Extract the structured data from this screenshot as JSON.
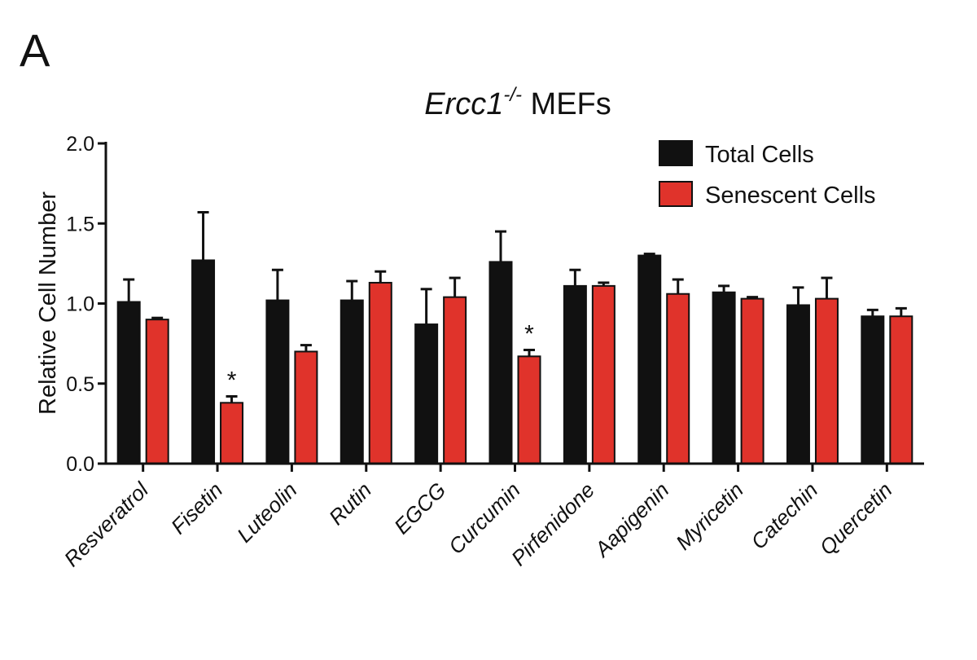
{
  "panel_label": "A",
  "chart_data": {
    "type": "bar",
    "title": "Ercc1",
    "title_superscript": "-/-",
    "title_suffix": " MEFs",
    "xlabel": "",
    "ylabel": "Relative Cell Number",
    "ylim": [
      0,
      2.0
    ],
    "yticks": [
      "0.0",
      "0.5",
      "1.0",
      "1.5",
      "2.0"
    ],
    "categories": [
      "Resveratrol",
      "Fisetin",
      "Luteolin",
      "Rutin",
      "EGCG",
      "Curcumin",
      "Pirfenidone",
      "Aapigenin",
      "Myricetin",
      "Catechin",
      "Quercetin"
    ],
    "series": [
      {
        "name": "Total Cells",
        "color": "#111111",
        "values": [
          1.01,
          1.27,
          1.02,
          1.02,
          0.87,
          1.26,
          1.11,
          1.3,
          1.07,
          0.99,
          0.92
        ],
        "errors": [
          0.14,
          0.3,
          0.19,
          0.12,
          0.22,
          0.19,
          0.1,
          0.01,
          0.04,
          0.11,
          0.04
        ]
      },
      {
        "name": "Senescent Cells",
        "color": "#e0332b",
        "values": [
          0.9,
          0.38,
          0.7,
          1.13,
          1.04,
          0.67,
          1.11,
          1.06,
          1.03,
          1.03,
          0.92
        ],
        "errors": [
          0.01,
          0.04,
          0.04,
          0.07,
          0.12,
          0.04,
          0.02,
          0.09,
          0.01,
          0.13,
          0.05
        ]
      }
    ],
    "significance": [
      {
        "category": "Fisetin",
        "series": "Senescent Cells",
        "label": "*"
      },
      {
        "category": "Curcumin",
        "series": "Senescent Cells",
        "label": "*"
      }
    ],
    "legend_position": "top-right"
  }
}
